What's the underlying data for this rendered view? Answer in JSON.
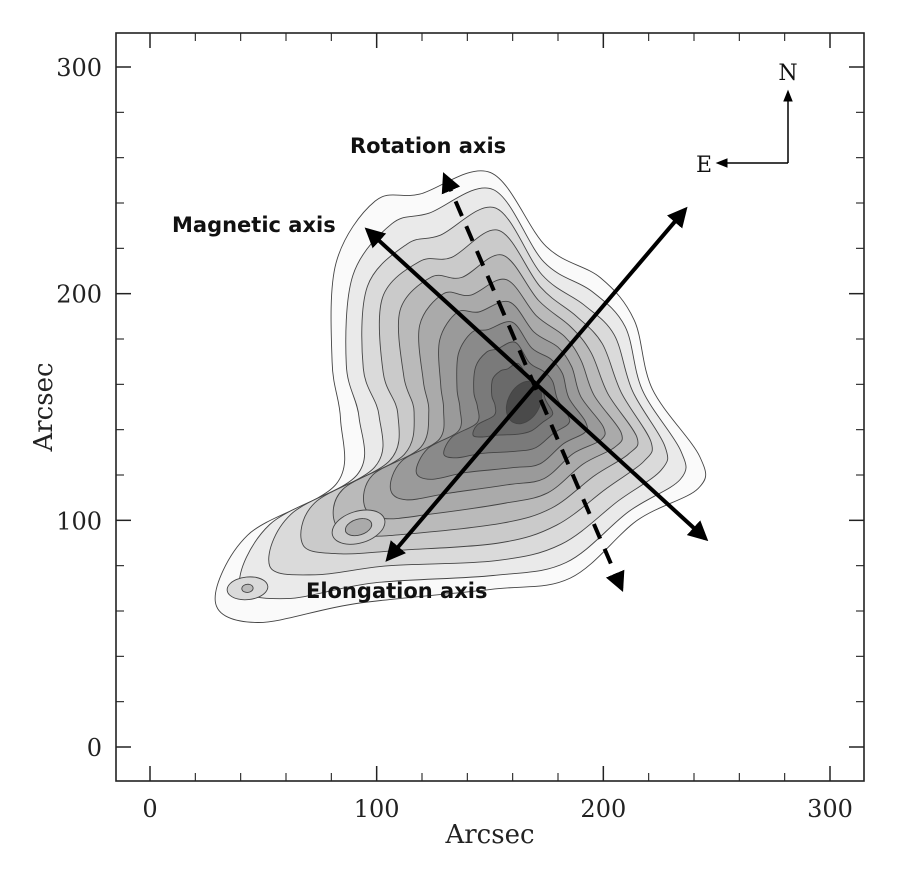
{
  "chart_data": {
    "type": "contour",
    "xlabel": "Arcsec",
    "ylabel": "Arcsec",
    "xlim": [
      -15,
      315
    ],
    "ylim": [
      -15,
      315
    ],
    "xticks": [
      0,
      100,
      200,
      300
    ],
    "yticks": [
      0,
      100,
      200,
      300
    ],
    "compass": {
      "north": "N",
      "east": "E"
    },
    "axes_annotations": [
      {
        "id": "rotation",
        "label": "Rotation axis",
        "style": "dashed",
        "from": [
          208,
          70
        ],
        "to": [
          130,
          252
        ]
      },
      {
        "id": "magnetic",
        "label": "Magnetic axis",
        "style": "solid",
        "from": [
          245,
          92
        ],
        "to": [
          96,
          228
        ]
      },
      {
        "id": "elongation",
        "label": "Elongation axis",
        "style": "solid",
        "from": [
          105,
          83
        ],
        "to": [
          236,
          237
        ]
      }
    ],
    "contour_levels": 10,
    "peak": [
      165,
      152
    ]
  }
}
